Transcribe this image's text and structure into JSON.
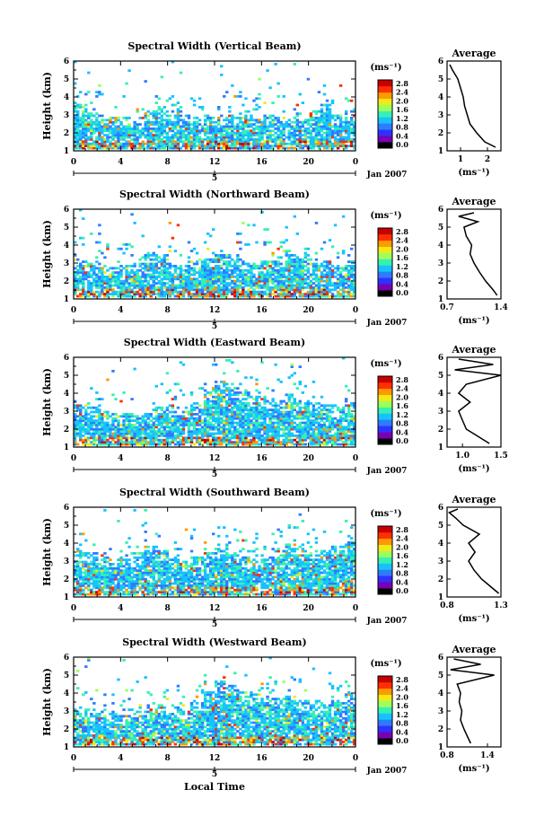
{
  "colorbar_unit": "(ms⁻¹)",
  "colorbar_ticks": [
    "0.0",
    "0.4",
    "0.8",
    "1.2",
    "1.6",
    "2.0",
    "2.4",
    "2.8"
  ],
  "colorbar_colors": [
    "#000000",
    "#7a00b5",
    "#2f31ff",
    "#2f7bff",
    "#16c3ff",
    "#37f0b4",
    "#9cff5c",
    "#f2ea18",
    "#ff9a00",
    "#ff3000",
    "#c80000"
  ],
  "y_label": "Height (km)",
  "y_ticks": [
    "1",
    "2",
    "3",
    "4",
    "5",
    "6"
  ],
  "x_ticks": [
    "0",
    "4",
    "8",
    "12",
    "16",
    "20",
    "0"
  ],
  "date_label": "Jan 2007",
  "day_label": "5",
  "x_axis_title": "Local Time",
  "average_title": "Average",
  "average_unit": "(ms⁻¹)",
  "chart_data": [
    {
      "type": "heatmap",
      "title": "Spectral Width (Vertical Beam)",
      "ylabel": "Height (km)",
      "ylim": [
        1,
        6
      ],
      "xlim": [
        0,
        24
      ],
      "colorbar_range": [
        0,
        2.8
      ],
      "echo_top_km": [
        3.6,
        3.3,
        3.0,
        2.9,
        2.8,
        2.9,
        3.2,
        3.4,
        3.2,
        3.0,
        2.9,
        2.8,
        2.8,
        3.0,
        3.1,
        3.0,
        3.0,
        2.9,
        2.8,
        2.9,
        3.2,
        3.6,
        3.0,
        3.2
      ],
      "average_profile": {
        "xlim": [
          0.5,
          2.5
        ],
        "xticks": [
          "1",
          "2"
        ],
        "heights": [
          1.2,
          1.5,
          2.0,
          2.5,
          3.0,
          3.5,
          4.0,
          4.5,
          5.0,
          5.5,
          5.8
        ],
        "values": [
          2.3,
          1.9,
          1.6,
          1.35,
          1.25,
          1.15,
          1.1,
          1.0,
          0.9,
          0.7,
          0.6
        ]
      }
    },
    {
      "type": "heatmap",
      "title": "Spectral Width (Northward Beam)",
      "ylabel": "Height (km)",
      "ylim": [
        1,
        6
      ],
      "xlim": [
        0,
        24
      ],
      "colorbar_range": [
        0,
        2.8
      ],
      "echo_top_km": [
        3.2,
        3.0,
        2.8,
        2.7,
        2.9,
        3.0,
        3.6,
        3.4,
        3.0,
        2.9,
        3.1,
        3.3,
        3.5,
        3.4,
        3.2,
        3.0,
        3.1,
        3.3,
        3.7,
        3.4,
        3.0,
        3.1,
        2.9,
        3.1
      ],
      "average_profile": {
        "xlim": [
          0.7,
          1.4
        ],
        "xticks": [
          "0.7",
          "1.4"
        ],
        "heights": [
          1.2,
          1.5,
          2.0,
          2.5,
          3.0,
          3.5,
          4.0,
          4.5,
          5.0,
          5.3,
          5.6,
          5.8
        ],
        "values": [
          1.35,
          1.3,
          1.2,
          1.12,
          1.05,
          1.0,
          1.02,
          0.95,
          0.92,
          1.1,
          0.85,
          1.05
        ]
      }
    },
    {
      "type": "heatmap",
      "title": "Spectral Width (Eastward Beam)",
      "ylabel": "Height (km)",
      "ylim": [
        1,
        6
      ],
      "xlim": [
        0,
        24
      ],
      "colorbar_range": [
        0,
        2.8
      ],
      "echo_top_km": [
        3.3,
        3.2,
        3.0,
        2.9,
        2.8,
        2.7,
        2.8,
        3.2,
        3.3,
        3.0,
        3.5,
        4.2,
        4.6,
        4.3,
        4.0,
        3.8,
        3.7,
        3.6,
        3.9,
        3.6,
        3.4,
        3.3,
        3.2,
        3.5
      ],
      "average_profile": {
        "xlim": [
          0.8,
          1.5
        ],
        "xticks": [
          "1.0",
          "1.5"
        ],
        "heights": [
          1.2,
          1.6,
          2.0,
          2.5,
          3.0,
          3.5,
          4.0,
          4.5,
          5.0,
          5.3,
          5.6,
          5.9
        ],
        "values": [
          1.35,
          1.2,
          1.05,
          1.0,
          0.95,
          1.1,
          0.95,
          1.05,
          1.5,
          0.9,
          1.4,
          0.95
        ]
      }
    },
    {
      "type": "heatmap",
      "title": "Spectral Width (Southward Beam)",
      "ylabel": "Height (km)",
      "ylim": [
        1,
        6
      ],
      "xlim": [
        0,
        24
      ],
      "colorbar_range": [
        0,
        2.8
      ],
      "echo_top_km": [
        3.6,
        3.4,
        3.2,
        3.0,
        3.1,
        3.4,
        3.8,
        3.6,
        3.2,
        3.0,
        3.2,
        3.4,
        3.7,
        3.5,
        3.2,
        3.1,
        3.3,
        3.6,
        3.9,
        3.7,
        3.5,
        3.6,
        3.8,
        4.0
      ],
      "average_profile": {
        "xlim": [
          0.8,
          1.3
        ],
        "xticks": [
          "0.8",
          "1.3"
        ],
        "heights": [
          1.2,
          1.5,
          2.0,
          2.5,
          3.0,
          3.5,
          4.0,
          4.5,
          5.0,
          5.4,
          5.7,
          5.9
        ],
        "values": [
          1.28,
          1.22,
          1.12,
          1.05,
          1.0,
          1.06,
          1.0,
          1.1,
          0.95,
          0.88,
          0.82,
          0.9
        ]
      }
    },
    {
      "type": "heatmap",
      "title": "Spectral Width (Westward Beam)",
      "ylabel": "Height (km)",
      "ylim": [
        1,
        6
      ],
      "xlim": [
        0,
        24
      ],
      "colorbar_range": [
        0,
        2.8
      ],
      "echo_top_km": [
        3.2,
        3.0,
        2.9,
        2.8,
        2.9,
        3.0,
        3.1,
        3.3,
        3.2,
        3.0,
        3.4,
        4.0,
        4.6,
        4.4,
        4.1,
        3.9,
        3.8,
        3.7,
        3.8,
        3.6,
        3.4,
        3.5,
        3.6,
        3.9
      ],
      "average_profile": {
        "xlim": [
          0.8,
          1.6
        ],
        "xticks": [
          "0.8",
          "1.4"
        ],
        "heights": [
          1.2,
          1.6,
          2.0,
          2.5,
          3.0,
          3.5,
          4.0,
          4.5,
          5.0,
          5.3,
          5.6,
          5.9
        ],
        "values": [
          1.15,
          1.1,
          1.05,
          1.0,
          1.02,
          0.98,
          1.0,
          0.95,
          1.5,
          0.85,
          1.3,
          0.9
        ]
      }
    }
  ]
}
